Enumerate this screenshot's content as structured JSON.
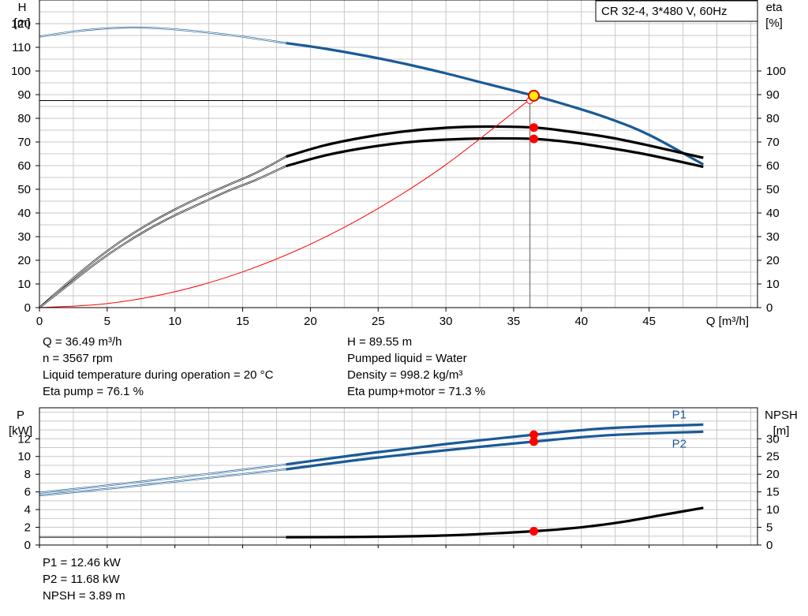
{
  "chart_data": [
    {
      "type": "line",
      "title": "CR 32-4, 3*480 V, 60Hz",
      "xlabel": "Q [m³/h]",
      "xlim": [
        0,
        53
      ],
      "x_ticks": [
        0,
        5,
        10,
        15,
        20,
        25,
        30,
        35,
        40,
        45
      ],
      "left_axis": {
        "label_line1": "H",
        "label_line2": "[m]",
        "ylim": [
          0,
          130
        ],
        "ticks": [
          0,
          10,
          20,
          30,
          40,
          50,
          60,
          70,
          80,
          90,
          100,
          110,
          120
        ]
      },
      "right_axis": {
        "label_line1": "eta",
        "label_line2": "[%]",
        "ylim": [
          0,
          130
        ],
        "ticks": [
          0,
          10,
          20,
          30,
          40,
          50,
          60,
          70,
          80,
          90,
          100
        ]
      },
      "grid": true,
      "series": [
        {
          "key": "H",
          "axis": "left",
          "color": "#1a5a96",
          "x": [
            0,
            3,
            6,
            9,
            12,
            15,
            18.2,
            21,
            24,
            27,
            30,
            33,
            36.49,
            39,
            42,
            45,
            49
          ],
          "y": [
            114.5,
            117,
            118.3,
            118,
            116.5,
            114.5,
            111.8,
            109.5,
            106.5,
            103,
            99,
            94.6,
            89.55,
            85.5,
            80,
            73,
            60.5
          ],
          "bold_from": 18.2
        },
        {
          "key": "eta_pump",
          "axis": "right",
          "color": "#000000",
          "x": [
            0,
            2,
            4,
            6,
            8,
            10,
            12,
            14,
            16,
            18.2,
            21,
            24,
            27,
            30,
            33,
            36.49,
            39,
            42,
            45,
            49
          ],
          "y": [
            0,
            10,
            19.5,
            28,
            35.2,
            41.5,
            47,
            52,
            57,
            63.8,
            68.5,
            72,
            74.5,
            76,
            76.5,
            76.1,
            74.5,
            72,
            68.5,
            63.3
          ],
          "bold_from": 18.2
        },
        {
          "key": "eta_pump_motor",
          "axis": "right",
          "color": "#000000",
          "x": [
            0,
            2,
            4,
            6,
            8,
            10,
            12,
            14,
            16,
            18.2,
            21,
            24,
            27,
            30,
            33,
            36.49,
            39,
            42,
            45,
            49
          ],
          "y": [
            0,
            9,
            18,
            26,
            33,
            39,
            44.3,
            49.5,
            54,
            59.8,
            64.2,
            67.5,
            69.8,
            71,
            71.5,
            71.3,
            70,
            67.5,
            64.5,
            59.5
          ],
          "bold_from": 18.2
        },
        {
          "key": "system_curve",
          "axis": "left",
          "color": "#ff0000",
          "x": [
            0,
            5,
            10,
            15,
            20,
            25,
            30,
            36.2
          ],
          "y": [
            0,
            1.7,
            6.7,
            15.1,
            26.8,
            41.9,
            60.4,
            88
          ]
        }
      ],
      "operating_point": {
        "Q": 36.49,
        "H": 89.55,
        "eta_pump": 76.1,
        "eta_pump_motor": 71.3
      },
      "reference_line": {
        "H": 87.5,
        "Q": 36.2
      }
    },
    {
      "type": "line",
      "xlim": [
        0,
        53
      ],
      "left_axis": {
        "label_line1": "P",
        "label_line2": "[kW]",
        "ylim": [
          0,
          15.5
        ],
        "ticks": [
          0,
          2,
          4,
          6,
          8,
          10,
          12
        ]
      },
      "right_axis": {
        "label_line1": "NPSH",
        "label_line2": "[m]",
        "ylim": [
          0,
          38.75
        ],
        "ticks": [
          0,
          5,
          10,
          15,
          20,
          25,
          30
        ]
      },
      "grid": true,
      "series": [
        {
          "key": "P1",
          "name": "P1",
          "axis": "left",
          "color": "#1a5a96",
          "x": [
            0,
            6,
            12,
            18.2,
            24,
            30,
            36.49,
            42,
            49
          ],
          "y": [
            5.9,
            6.9,
            7.95,
            9.1,
            10.3,
            11.4,
            12.46,
            13.2,
            13.6
          ],
          "bold_from": 18.2
        },
        {
          "key": "P2",
          "name": "P2",
          "axis": "left",
          "color": "#1a5a96",
          "x": [
            0,
            6,
            12,
            18.2,
            24,
            30,
            36.49,
            42,
            49
          ],
          "y": [
            5.6,
            6.5,
            7.5,
            8.55,
            9.7,
            10.7,
            11.68,
            12.4,
            12.8
          ],
          "bold_from": 18.2
        },
        {
          "key": "NPSH",
          "axis": "right",
          "color": "#000000",
          "x": [
            18.2,
            24,
            30,
            36.49,
            40,
            43,
            46,
            49
          ],
          "y": [
            2.2,
            2.3,
            2.7,
            3.89,
            5.0,
            6.5,
            8.5,
            10.5
          ],
          "bold_from": 18.2
        }
      ],
      "reference_line": {
        "NPSH": 2.2
      },
      "operating_point": {
        "Q": 36.49,
        "P1": 12.46,
        "P2": 11.68,
        "NPSH": 3.89
      }
    }
  ],
  "info_top": {
    "left": [
      "Q = 36.49 m³/h",
      "n = 3567 rpm",
      "Liquid temperature during operation = 20 °C",
      "Eta pump = 76.1 %"
    ],
    "right": [
      "H = 89.55 m",
      "Pumped liquid = Water",
      "Density = 998.2 kg/m³",
      "Eta pump+motor = 71.3 %"
    ]
  },
  "info_bottom": [
    "P1 = 12.46 kW",
    "P2 = 11.68 kW",
    "NPSH = 3.89 m"
  ]
}
